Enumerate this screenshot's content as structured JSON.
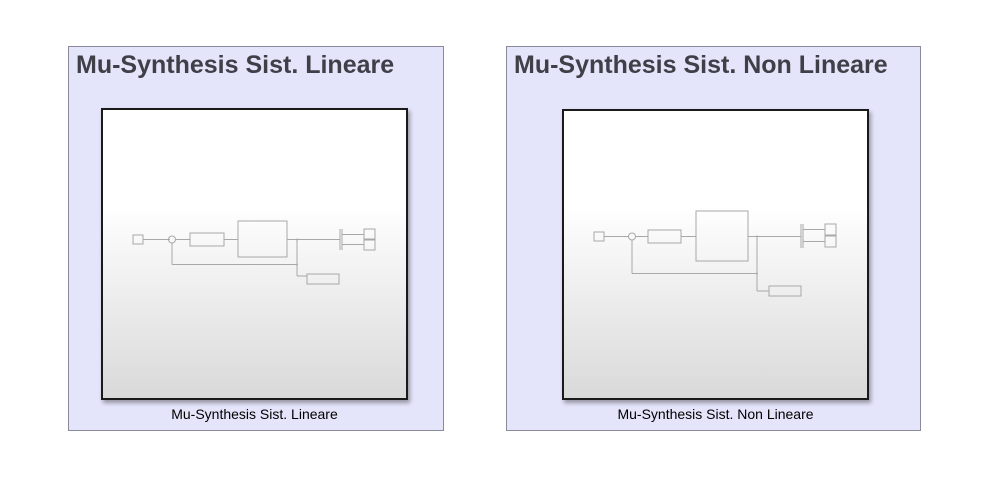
{
  "areas": [
    {
      "title": "Mu-Synthesis Sist. Lineare",
      "block_label": "Mu-Synthesis Sist. Lineare"
    },
    {
      "title": "Mu-Synthesis Sist. Non Lineare",
      "block_label": "Mu-Synthesis Sist. Non Lineare"
    }
  ],
  "colors": {
    "area_fill": "#e4e4fa",
    "area_border": "#8a8a9a",
    "title_text": "#3f3f48",
    "block_border": "#1a1a1a",
    "thumbnail_lines": "#a8a8a8"
  }
}
